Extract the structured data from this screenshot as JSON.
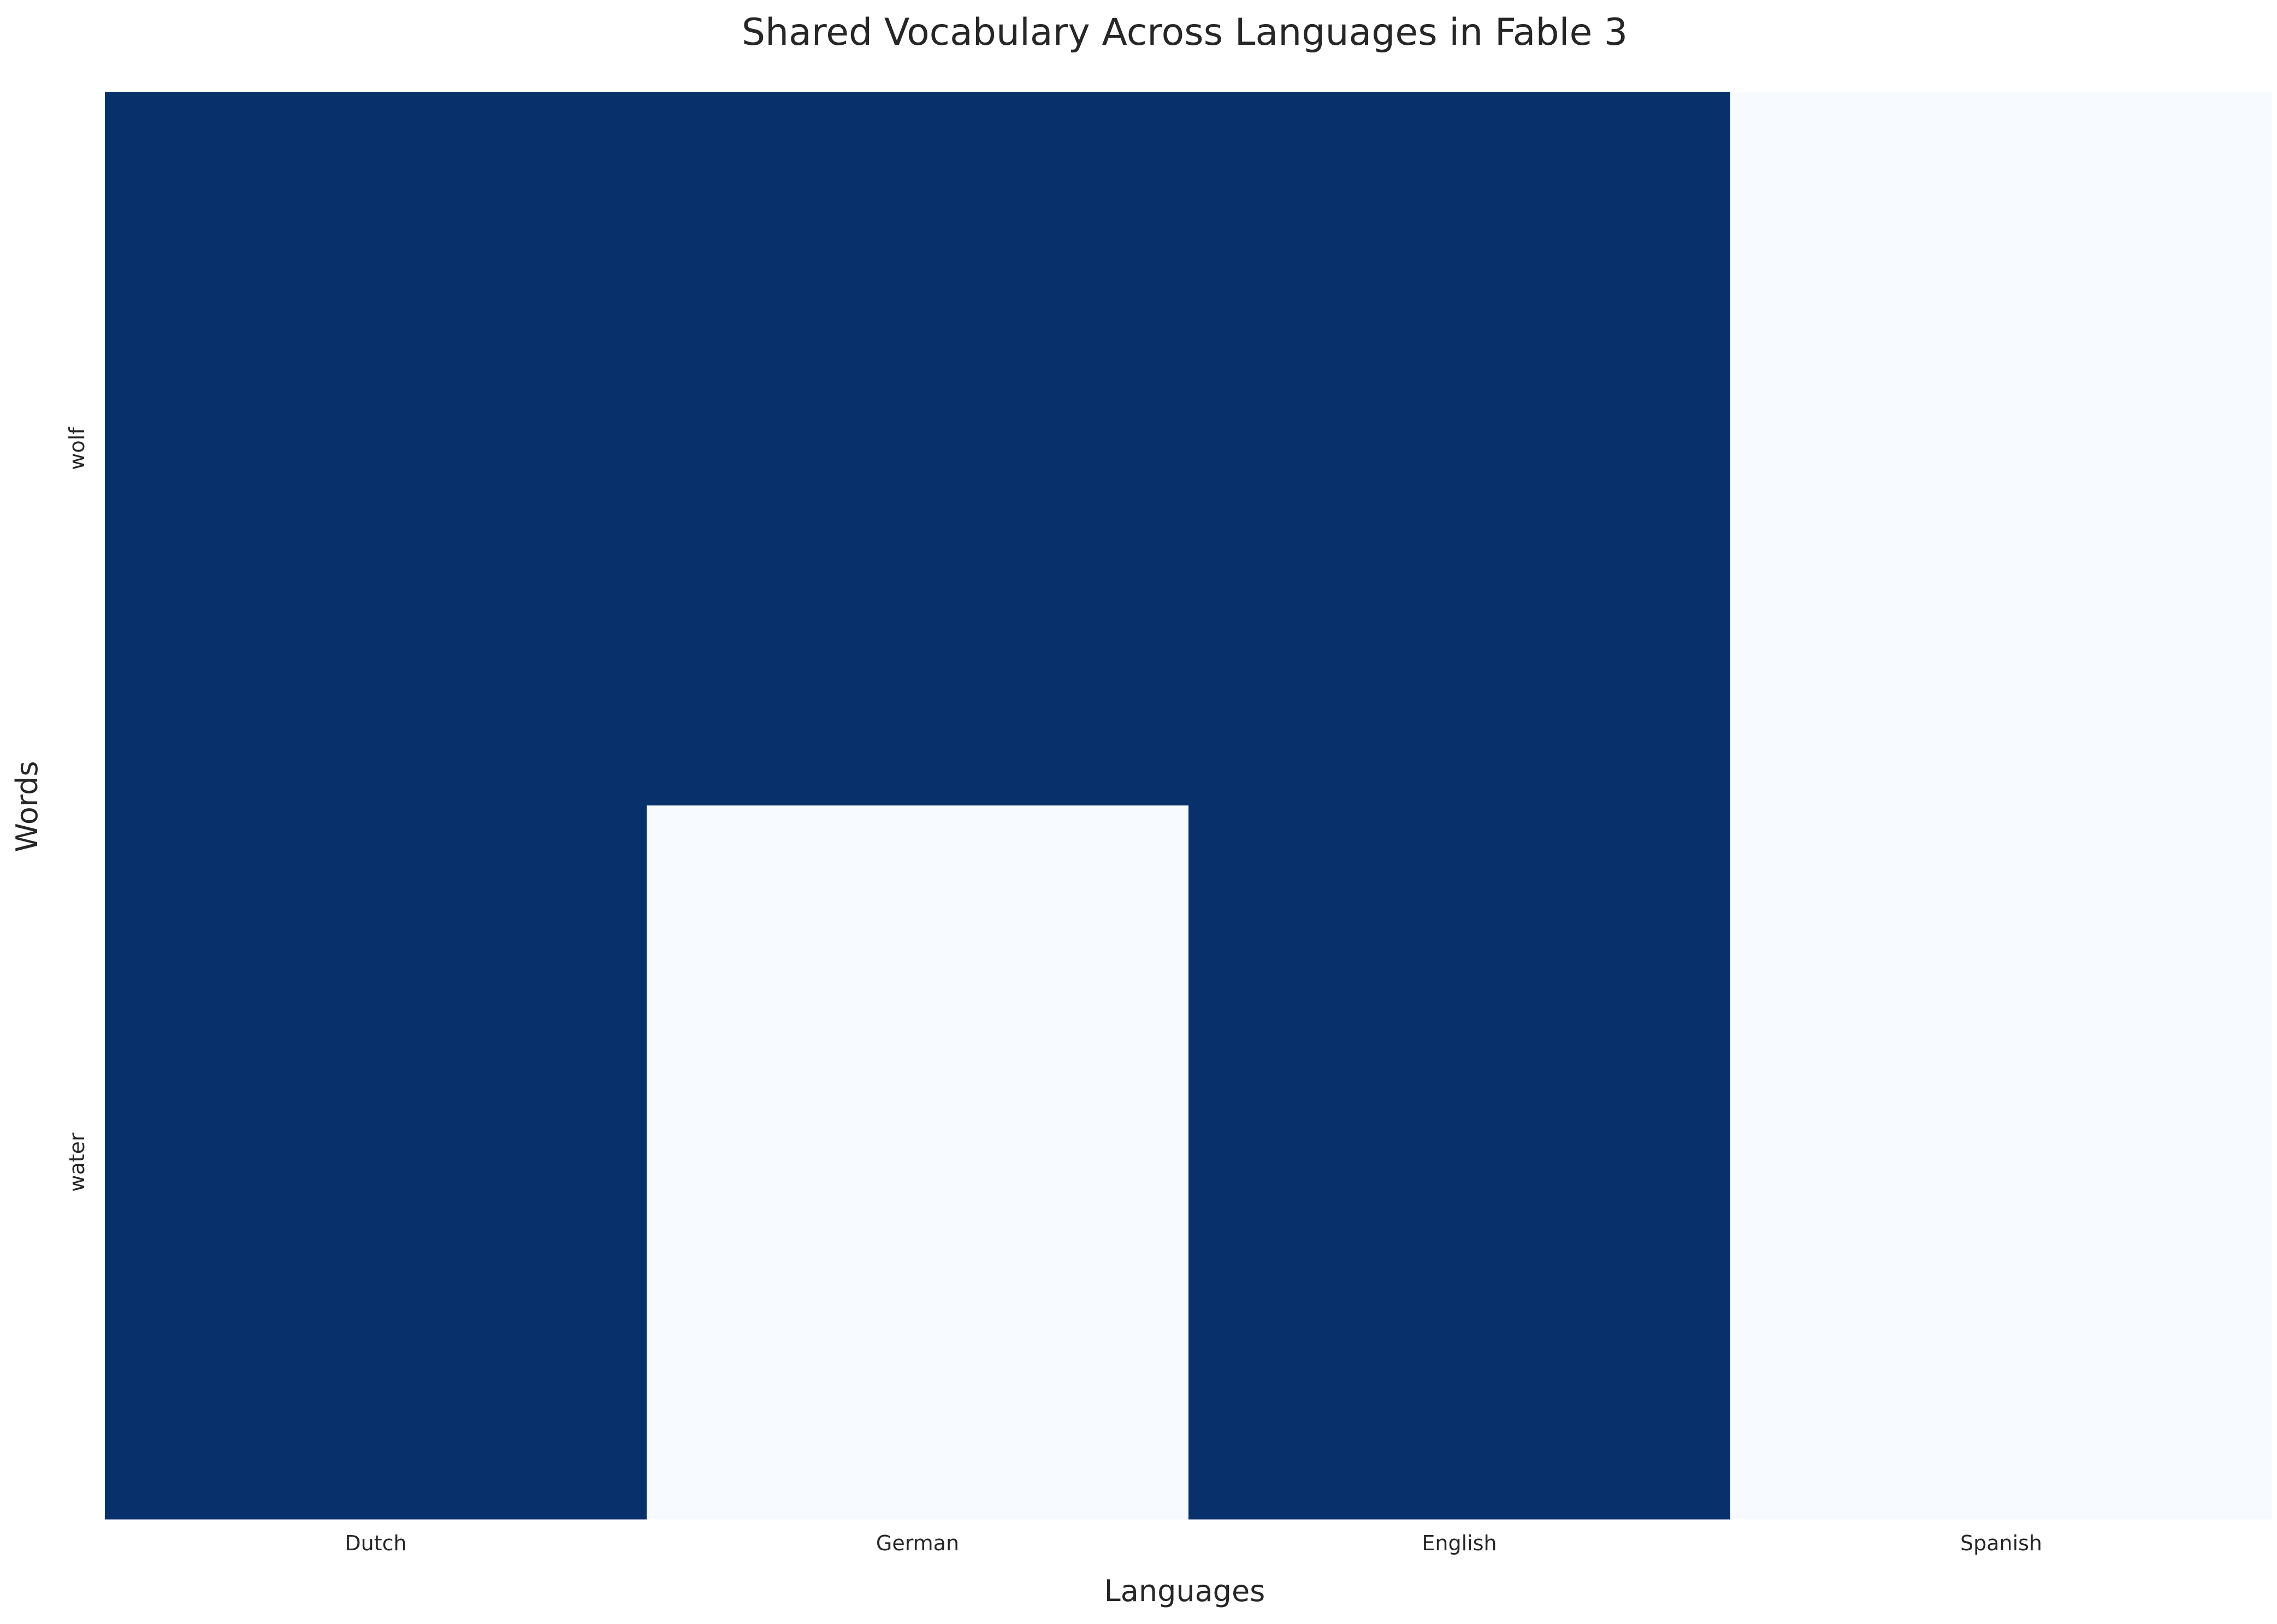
{
  "chart_data": {
    "type": "heatmap",
    "title": "Shared Vocabulary Across Languages in Fable 3",
    "xlabel": "Languages",
    "ylabel": "Words",
    "x_categories": [
      "Dutch",
      "German",
      "English",
      "Spanish"
    ],
    "y_categories": [
      "wolf",
      "water"
    ],
    "values": [
      [
        1,
        1,
        1,
        0
      ],
      [
        1,
        0,
        1,
        0
      ]
    ],
    "value_range": [
      0,
      1
    ],
    "colormap": "Blues",
    "colors": {
      "high": "#08306b",
      "low": "#f7fbff"
    },
    "grid": false,
    "colorbar": false
  }
}
